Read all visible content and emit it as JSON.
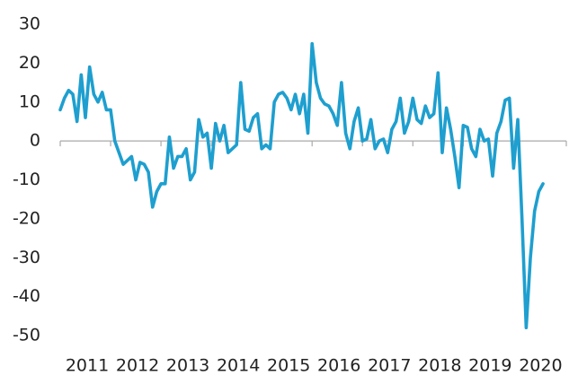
{
  "chart_data": {
    "type": "line",
    "categories": [
      null,
      null,
      null,
      null,
      null,
      null,
      "2011",
      null,
      null,
      null,
      null,
      null,
      null,
      null,
      null,
      null,
      null,
      null,
      "2012",
      null,
      null,
      null,
      null,
      null,
      null,
      null,
      null,
      null,
      null,
      null,
      "2013",
      null,
      null,
      null,
      null,
      null,
      null,
      null,
      null,
      null,
      null,
      null,
      "2014",
      null,
      null,
      null,
      null,
      null,
      null,
      null,
      null,
      null,
      null,
      null,
      "2015",
      null,
      null,
      null,
      null,
      null,
      null,
      null,
      null,
      null,
      null,
      null,
      "2016",
      null,
      null,
      null,
      null,
      null,
      null,
      null,
      null,
      null,
      null,
      null,
      "2017",
      null,
      null,
      null,
      null,
      null,
      null,
      null,
      null,
      null,
      null,
      null,
      "2018",
      null,
      null,
      null,
      null,
      null,
      null,
      null,
      null,
      null,
      null,
      null,
      "2019",
      null,
      null,
      null,
      null,
      null,
      null,
      null,
      null,
      null,
      null,
      null,
      "2020",
      null
    ],
    "series": [
      {
        "color": "#1e9fcf",
        "values": [
          8,
          11,
          13,
          12,
          5,
          17,
          6,
          19,
          12,
          10,
          12.5,
          8,
          8,
          0,
          -3,
          -6,
          -5,
          -4,
          -10,
          -5.5,
          -6,
          -8,
          -17,
          -13,
          -11,
          -11,
          1,
          -7,
          -4,
          -4,
          -2,
          -10,
          -8,
          5.5,
          1,
          2,
          -7,
          4.5,
          0,
          4,
          -3,
          -2,
          -1,
          15,
          3,
          2.5,
          6,
          7,
          -2,
          -1,
          -2,
          10,
          12,
          12.5,
          11,
          8,
          12,
          7,
          12,
          2,
          25,
          15,
          11,
          9.5,
          9,
          7,
          4,
          15,
          2,
          -2,
          5,
          8.5,
          0,
          0.5,
          5.5,
          -2,
          0,
          0.5,
          -3,
          3,
          5,
          11,
          2,
          5,
          11,
          5.5,
          4.5,
          9,
          6,
          7,
          17.5,
          -3,
          8.5,
          3,
          -4,
          -12,
          4,
          3.5,
          -2,
          -4,
          3,
          0,
          0.5,
          -9,
          2,
          5,
          10.5,
          11,
          -7,
          5.5,
          -20,
          -48,
          -30,
          -18,
          -13,
          -11
        ]
      }
    ],
    "ylim": [
      -50,
      30
    ],
    "yticks": [
      30,
      20,
      10,
      0,
      -10,
      -20,
      -30,
      -40,
      -50
    ]
  }
}
